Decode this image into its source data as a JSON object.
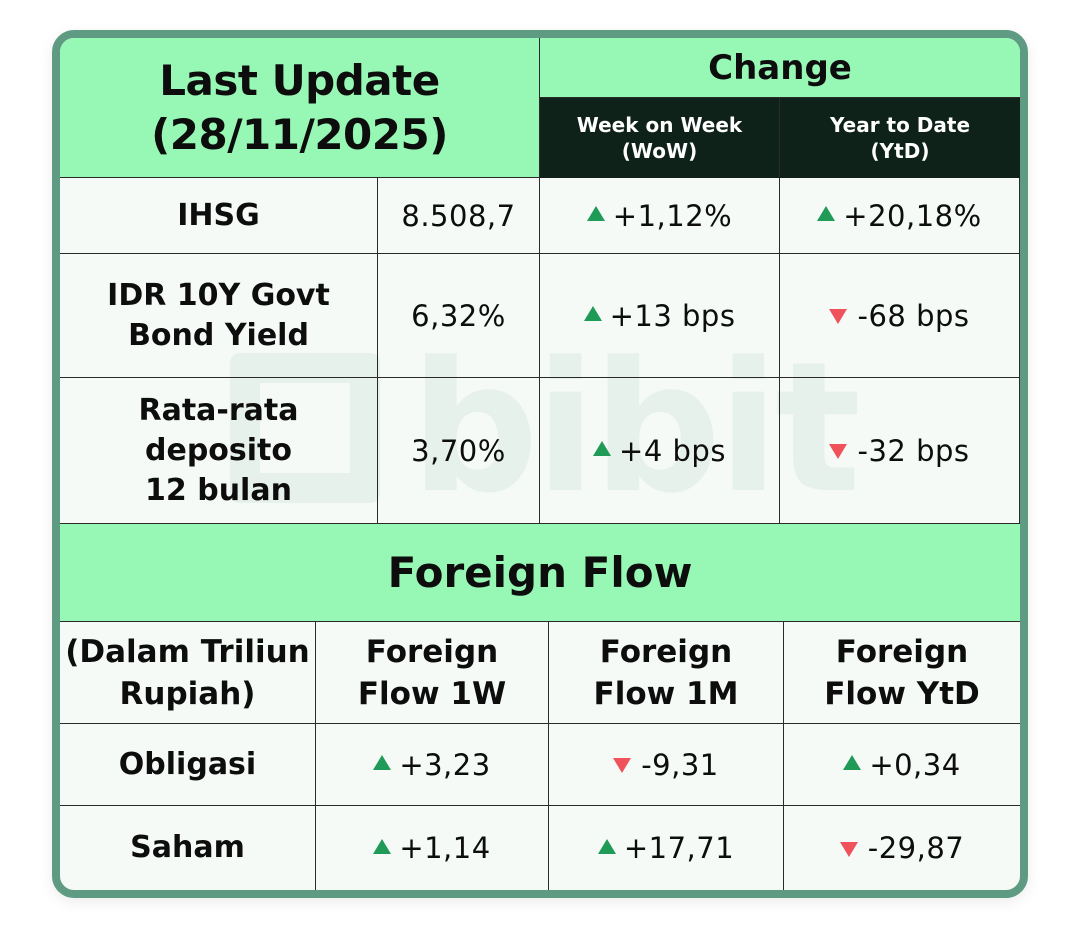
{
  "header": {
    "last_update_line1": "Last Update",
    "last_update_line2": "(28/11/2025)",
    "change_title": "Change",
    "wow_line1": "Week on Week",
    "wow_line2": "(WoW)",
    "ytd_line1": "Year to Date",
    "ytd_line2": "(YtD)"
  },
  "market_rows": [
    {
      "label_lines": [
        "IHSG"
      ],
      "value": "8.508,7",
      "wow": "+1,12%",
      "wow_dir": "up",
      "ytd": "+20,18%",
      "ytd_dir": "up"
    },
    {
      "label_lines": [
        "IDR 10Y Govt",
        "Bond Yield"
      ],
      "value": "6,32%",
      "wow": "+13 bps",
      "wow_dir": "up",
      "ytd": "-68 bps",
      "ytd_dir": "down"
    },
    {
      "label_lines": [
        "Rata-rata",
        "deposito",
        "12 bulan"
      ],
      "value": "3,70%",
      "wow": "+4 bps",
      "wow_dir": "up",
      "ytd": "-32 bps",
      "ytd_dir": "down"
    }
  ],
  "foreign_flow": {
    "title": "Foreign Flow",
    "unit_line1": "(Dalam Triliun",
    "unit_line2": "Rupiah)",
    "col_1w_line1": "Foreign",
    "col_1w_line2": "Flow 1W",
    "col_1m_line1": "Foreign",
    "col_1m_line2": "Flow 1M",
    "col_ytd_line1": "Foreign",
    "col_ytd_line2": "Flow YtD",
    "rows": [
      {
        "label": "Obligasi",
        "w1": "+3,23",
        "w1_dir": "up",
        "m1": "-9,31",
        "m1_dir": "down",
        "ytd": "+0,34",
        "ytd_dir": "up"
      },
      {
        "label": "Saham",
        "w1": "+1,14",
        "w1_dir": "up",
        "m1": "+17,71",
        "m1_dir": "up",
        "ytd": "-29,87",
        "ytd_dir": "down"
      }
    ]
  },
  "watermark": {
    "text": "bibit",
    "icon": "bibit-logo-icon"
  },
  "colors": {
    "header_green": "#97f8b5",
    "dark_header": "#0e2219",
    "border_green": "#5f9a83",
    "up": "#1f9a57",
    "down": "#f0525c"
  }
}
